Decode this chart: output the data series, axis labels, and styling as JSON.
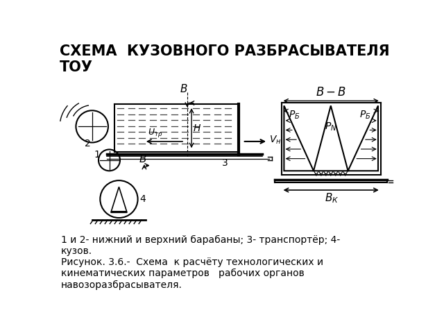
{
  "title": "СХЕМА  КУЗОВНОГО РАЗБРАСЫВАТЕЛЯ\nТОУ",
  "title_fontsize": 15,
  "caption1": "1 и 2- нижний и верхний барабаны; 3- транспортёр; 4-\nкузов.",
  "caption2": "Рисунок. 3.6.-  Схема  к расчёту технологических и\nкинематических параметров   рабочих органов\nнавозоразбрасывателя.",
  "bg_color": "#ffffff",
  "line_color": "#000000"
}
